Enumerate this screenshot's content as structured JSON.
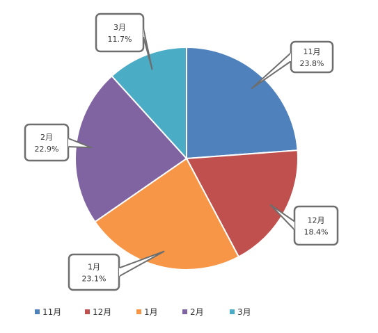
{
  "chart_data": {
    "type": "pie",
    "categories": [
      "11月",
      "12月",
      "1月",
      "2月",
      "3月"
    ],
    "values": [
      23.8,
      18.4,
      23.1,
      22.9,
      11.7
    ],
    "data_labels": [
      "23.8%",
      "18.4%",
      "23.1%",
      "22.9%",
      "11.7%"
    ],
    "colors": [
      "#4F81BD",
      "#C0504D",
      "#F79646",
      "#8064A2",
      "#4BACC6"
    ],
    "legend_position": "bottom",
    "start_angle_deg": 0,
    "direction": "clockwise"
  }
}
